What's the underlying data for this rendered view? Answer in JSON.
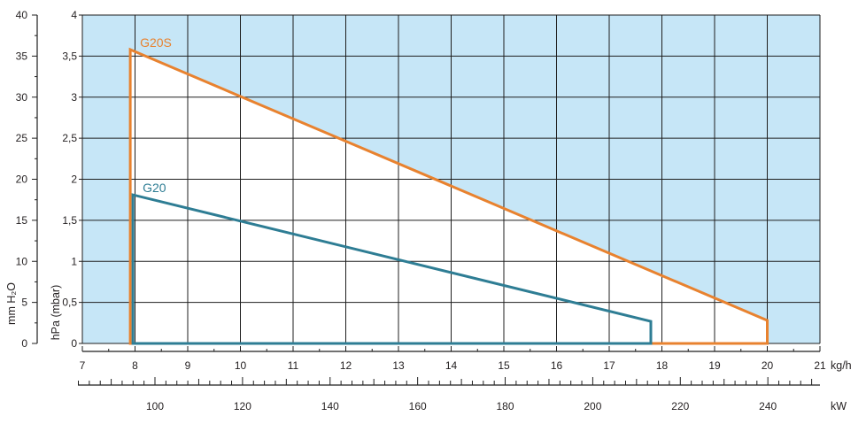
{
  "chart_data": {
    "type": "line",
    "title": "",
    "grid": true,
    "background_color": "#c6e6f7",
    "working_area_color": "#ffffff",
    "x_axis": {
      "label": "kg/h",
      "range": [
        7,
        21
      ],
      "ticks": [
        7,
        8,
        9,
        10,
        11,
        12,
        13,
        14,
        15,
        16,
        17,
        18,
        19,
        20,
        21
      ]
    },
    "x2_axis": {
      "label": "kW",
      "range": [
        82.4,
        251.9
      ],
      "ticks": [
        100,
        120,
        140,
        160,
        180,
        200,
        220,
        240
      ]
    },
    "y_axis": {
      "label": "hPa (mbar)",
      "range": [
        0,
        4
      ],
      "ticks": [
        "0",
        "0,5",
        "1",
        "1,5",
        "2",
        "2,5",
        "3",
        "3,5",
        "4"
      ]
    },
    "y2_axis": {
      "label": "mm H₂O",
      "range": [
        0,
        40
      ],
      "ticks": [
        0,
        5,
        10,
        15,
        20,
        25,
        30,
        35,
        40
      ]
    },
    "series": [
      {
        "name": "G20S",
        "color": "#e8822f",
        "points": [
          [
            7.91,
            0
          ],
          [
            7.91,
            3.58
          ],
          [
            20,
            0.28
          ],
          [
            20,
            0
          ]
        ]
      },
      {
        "name": "G20",
        "color": "#2e7d94",
        "points": [
          [
            7.96,
            0
          ],
          [
            7.96,
            1.81
          ],
          [
            17.79,
            0.27
          ],
          [
            17.79,
            0
          ]
        ]
      }
    ]
  }
}
